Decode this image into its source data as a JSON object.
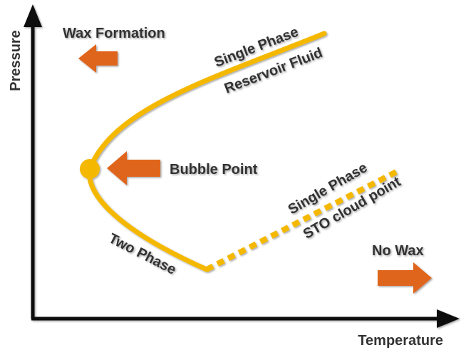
{
  "axes": {
    "y_label": "Pressure",
    "x_label": "Temperature"
  },
  "labels": {
    "wax_formation": "Wax Formation",
    "single_phase_reservoir": "Single Phase",
    "reservoir_fluid": "Reservoir Fluid",
    "bubble_point": "Bubble Point",
    "single_phase_sto": "Single Phase",
    "sto_cloud_point": "STO cloud point",
    "two_phase": "Two Phase",
    "no_wax": "No Wax"
  }
}
